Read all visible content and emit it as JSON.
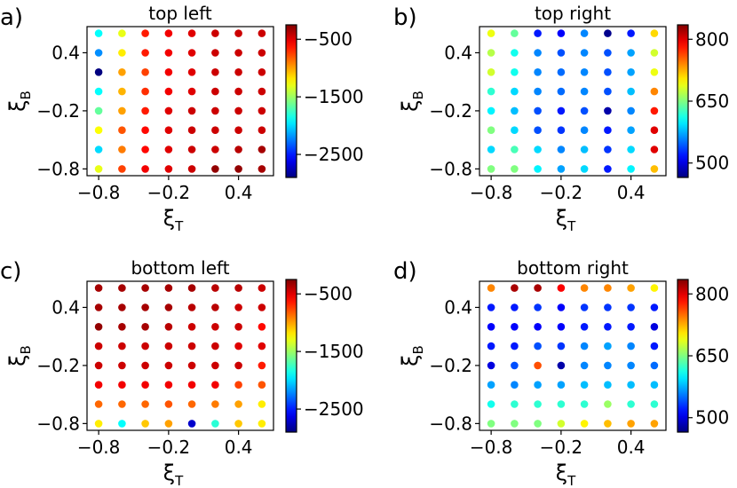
{
  "chart_data": [
    {
      "type": "scatter",
      "panel_label": "a)",
      "title": "top left",
      "xlabel": "ξ",
      "xlabel_sub": "T",
      "ylabel": "ξ",
      "ylabel_sub": "B",
      "x": [
        -0.8,
        -0.6,
        -0.4,
        -0.2,
        0.0,
        0.2,
        0.4,
        0.6
      ],
      "y": [
        0.6,
        0.4,
        0.2,
        0.0,
        -0.2,
        -0.4,
        -0.6,
        -0.8
      ],
      "xlim": [
        -0.9,
        0.7
      ],
      "ylim": [
        -0.87,
        0.67
      ],
      "xticks": [
        -0.8,
        -0.2,
        0.4
      ],
      "xtick_labels": [
        "−0.8",
        "−0.2",
        "0.4"
      ],
      "yticks": [
        0.4,
        -0.2,
        -0.8
      ],
      "ytick_labels": [
        "0.4",
        "−0.2",
        "−0.8"
      ],
      "colorbar": {
        "min": -2900,
        "max": -250,
        "ticks": [
          -500,
          -1500,
          -2500
        ],
        "tick_labels": [
          "−500",
          "−1500",
          "−2500"
        ]
      },
      "values": [
        [
          -1900,
          -1300,
          -650,
          -550,
          -500,
          -450,
          -450,
          -450
        ],
        [
          -2200,
          -1200,
          -650,
          -550,
          -500,
          -450,
          -450,
          -450
        ],
        [
          -2900,
          -1000,
          -750,
          -550,
          -500,
          -450,
          -450,
          -450
        ],
        [
          -1900,
          -1050,
          -700,
          -550,
          -500,
          -450,
          -450,
          -450
        ],
        [
          -1650,
          -1000,
          -650,
          -500,
          -450,
          -450,
          -450,
          -450
        ],
        [
          -1250,
          -800,
          -600,
          -500,
          -450,
          -450,
          -450,
          -450
        ],
        [
          -2000,
          -900,
          -600,
          -500,
          -450,
          -450,
          -400,
          -350
        ],
        [
          -1300,
          -750,
          -550,
          -500,
          -450,
          -300,
          -300,
          -350
        ]
      ]
    },
    {
      "type": "scatter",
      "panel_label": "b)",
      "title": "top right",
      "xlabel": "ξ",
      "xlabel_sub": "T",
      "ylabel": "ξ",
      "ylabel_sub": "B",
      "x": [
        -0.8,
        -0.6,
        -0.4,
        -0.2,
        0.0,
        0.2,
        0.4,
        0.6
      ],
      "y": [
        0.6,
        0.4,
        0.2,
        0.0,
        -0.2,
        -0.4,
        -0.6,
        -0.8
      ],
      "xlim": [
        -0.9,
        0.7
      ],
      "ylim": [
        -0.87,
        0.67
      ],
      "xticks": [
        -0.8,
        -0.2,
        0.4
      ],
      "xtick_labels": [
        "−0.8",
        "−0.2",
        "0.4"
      ],
      "yticks": [
        0.4,
        -0.2,
        -0.8
      ],
      "ytick_labels": [
        "0.4",
        "−0.2",
        "−0.8"
      ],
      "colorbar": {
        "min": 465,
        "max": 835,
        "ticks": [
          500,
          650,
          800
        ],
        "tick_labels": [
          "500",
          "650",
          "800"
        ]
      },
      "values": [
        [
          690,
          640,
          520,
          510,
          560,
          470,
          520,
          710
        ],
        [
          670,
          610,
          560,
          540,
          560,
          540,
          570,
          680
        ],
        [
          680,
          610,
          560,
          550,
          560,
          540,
          570,
          690
        ],
        [
          620,
          590,
          560,
          550,
          560,
          540,
          580,
          740
        ],
        [
          600,
          580,
          540,
          520,
          540,
          480,
          560,
          780
        ],
        [
          650,
          590,
          540,
          530,
          560,
          520,
          570,
          800
        ],
        [
          590,
          630,
          590,
          560,
          580,
          530,
          590,
          800
        ],
        [
          650,
          650,
          600,
          570,
          590,
          520,
          600,
          720
        ]
      ]
    },
    {
      "type": "scatter",
      "panel_label": "c)",
      "title": "bottom left",
      "xlabel": "ξ",
      "xlabel_sub": "T",
      "ylabel": "ξ",
      "ylabel_sub": "B",
      "x": [
        -0.8,
        -0.6,
        -0.4,
        -0.2,
        0.0,
        0.2,
        0.4,
        0.6
      ],
      "y": [
        0.6,
        0.4,
        0.2,
        0.0,
        -0.2,
        -0.4,
        -0.6,
        -0.8
      ],
      "xlim": [
        -0.9,
        0.7
      ],
      "ylim": [
        -0.87,
        0.67
      ],
      "xticks": [
        -0.8,
        -0.2,
        0.4
      ],
      "xtick_labels": [
        "−0.8",
        "−0.2",
        "0.4"
      ],
      "yticks": [
        0.4,
        -0.2,
        -0.8
      ],
      "ytick_labels": [
        "0.4",
        "−0.2",
        "−0.8"
      ],
      "colorbar": {
        "min": -2900,
        "max": -250,
        "ticks": [
          -500,
          -1500,
          -2500
        ],
        "tick_labels": [
          "−500",
          "−1500",
          "−2500"
        ]
      },
      "values": [
        [
          -350,
          -350,
          -350,
          -350,
          -350,
          -400,
          -400,
          -450
        ],
        [
          -350,
          -350,
          -350,
          -350,
          -400,
          -400,
          -450,
          -450
        ],
        [
          -300,
          -350,
          -350,
          -400,
          -450,
          -450,
          -450,
          -600
        ],
        [
          -450,
          -450,
          -450,
          -450,
          -450,
          -450,
          -500,
          -500
        ],
        [
          -450,
          -450,
          -450,
          -450,
          -450,
          -450,
          -450,
          -650
        ],
        [
          -550,
          -550,
          -550,
          -550,
          -550,
          -550,
          -750,
          -800
        ],
        [
          -850,
          -850,
          -850,
          -800,
          -850,
          -900,
          -1000,
          -1200
        ],
        [
          -1200,
          -1900,
          -1100,
          -1000,
          -2700,
          -1800,
          -1100,
          -1200
        ]
      ]
    },
    {
      "type": "scatter",
      "panel_label": "d)",
      "title": "bottom right",
      "xlabel": "ξ",
      "xlabel_sub": "T",
      "ylabel": "ξ",
      "ylabel_sub": "B",
      "x": [
        -0.8,
        -0.6,
        -0.4,
        -0.2,
        0.0,
        0.2,
        0.4,
        0.6
      ],
      "y": [
        0.6,
        0.4,
        0.2,
        0.0,
        -0.2,
        -0.4,
        -0.6,
        -0.8
      ],
      "xlim": [
        -0.9,
        0.7
      ],
      "ylim": [
        -0.87,
        0.67
      ],
      "xticks": [
        -0.8,
        -0.2,
        0.4
      ],
      "xtick_labels": [
        "−0.8",
        "−0.2",
        "0.4"
      ],
      "yticks": [
        0.4,
        -0.2,
        -0.8
      ],
      "ytick_labels": [
        "0.4",
        "−0.2",
        "−0.8"
      ],
      "colorbar": {
        "min": 465,
        "max": 835,
        "ticks": [
          500,
          650,
          800
        ],
        "tick_labels": [
          "500",
          "650",
          "800"
        ]
      },
      "values": [
        [
          740,
          820,
          820,
          790,
          740,
          740,
          730,
          700
        ],
        [
          520,
          520,
          530,
          510,
          530,
          530,
          530,
          520
        ],
        [
          510,
          510,
          510,
          510,
          520,
          520,
          520,
          500
        ],
        [
          520,
          520,
          540,
          530,
          560,
          570,
          560,
          520
        ],
        [
          500,
          540,
          760,
          480,
          560,
          560,
          560,
          550
        ],
        [
          570,
          560,
          570,
          570,
          580,
          580,
          580,
          580
        ],
        [
          610,
          620,
          620,
          620,
          620,
          660,
          620,
          620
        ],
        [
          650,
          650,
          650,
          680,
          700,
          720,
          730,
          730
        ]
      ]
    }
  ]
}
